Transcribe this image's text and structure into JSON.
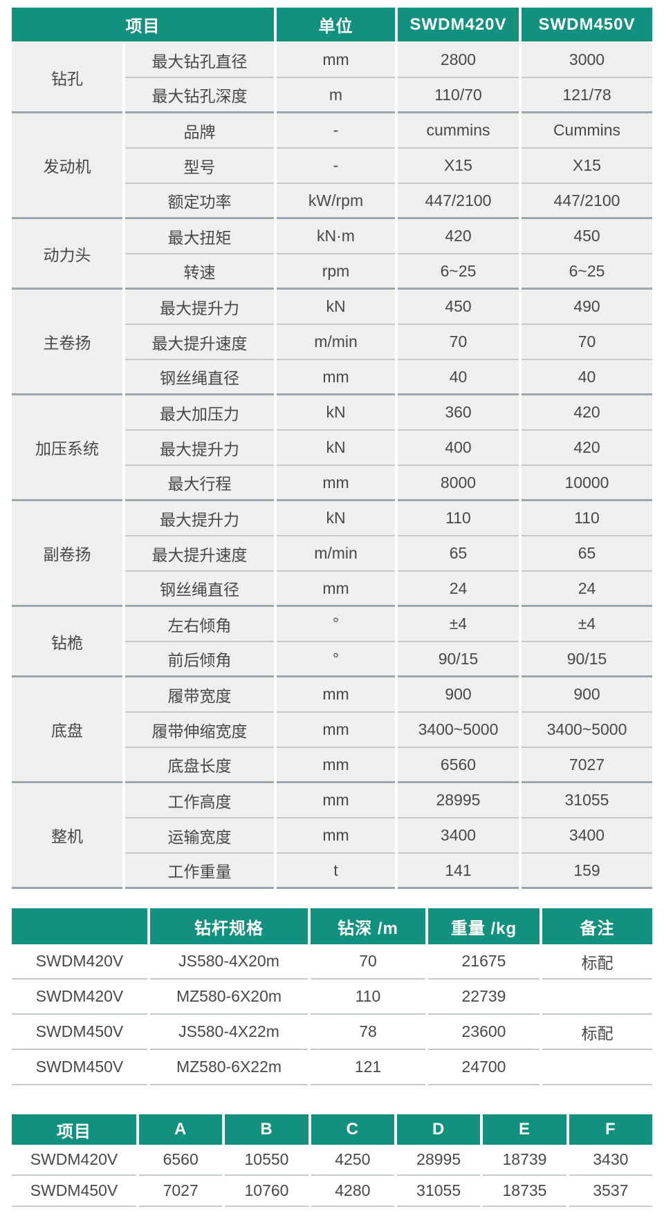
{
  "colors": {
    "accent": "#12917E",
    "cell_bg": "#EFEFEE",
    "group_line": "#9CA5AB",
    "row_line": "#C3C9C7",
    "header_text": "#FFFFFF",
    "body_text": "#45494A"
  },
  "spec_table": {
    "headers": {
      "item": "项目",
      "unit": "单位",
      "model_a": "SWDM420V",
      "model_b": "SWDM450V"
    },
    "groups": [
      {
        "name": "钻孔",
        "rows": [
          {
            "item": "最大钻孔直径",
            "unit": "mm",
            "a": "2800",
            "b": "3000"
          },
          {
            "item": "最大钻孔深度",
            "unit": "m",
            "a": "110/70",
            "b": "121/78"
          }
        ]
      },
      {
        "name": "发动机",
        "rows": [
          {
            "item": "品牌",
            "unit": "-",
            "a": "cummins",
            "b": "Cummins"
          },
          {
            "item": "型号",
            "unit": "-",
            "a": "X15",
            "b": "X15"
          },
          {
            "item": "额定功率",
            "unit": "kW/rpm",
            "a": "447/2100",
            "b": "447/2100"
          }
        ]
      },
      {
        "name": "动力头",
        "rows": [
          {
            "item": "最大扭矩",
            "unit": "kN·m",
            "a": "420",
            "b": "450"
          },
          {
            "item": "转速",
            "unit": "rpm",
            "a": "6~25",
            "b": "6~25"
          }
        ]
      },
      {
        "name": "主卷扬",
        "rows": [
          {
            "item": "最大提升力",
            "unit": "kN",
            "a": "450",
            "b": "490"
          },
          {
            "item": "最大提升速度",
            "unit": "m/min",
            "a": "70",
            "b": "70"
          },
          {
            "item": "钢丝绳直径",
            "unit": "mm",
            "a": "40",
            "b": "40"
          }
        ]
      },
      {
        "name": "加压系统",
        "rows": [
          {
            "item": "最大加压力",
            "unit": "kN",
            "a": "360",
            "b": "420"
          },
          {
            "item": "最大提升力",
            "unit": "kN",
            "a": "400",
            "b": "420"
          },
          {
            "item": "最大行程",
            "unit": "mm",
            "a": "8000",
            "b": "10000"
          }
        ]
      },
      {
        "name": "副卷扬",
        "rows": [
          {
            "item": "最大提升力",
            "unit": "kN",
            "a": "110",
            "b": "110"
          },
          {
            "item": "最大提升速度",
            "unit": "m/min",
            "a": "65",
            "b": "65"
          },
          {
            "item": "钢丝绳直径",
            "unit": "mm",
            "a": "24",
            "b": "24"
          }
        ]
      },
      {
        "name": "钻桅",
        "rows": [
          {
            "item": "左右倾角",
            "unit": "°",
            "a": "±4",
            "b": "±4"
          },
          {
            "item": "前后倾角",
            "unit": "°",
            "a": "90/15",
            "b": "90/15"
          }
        ]
      },
      {
        "name": "底盘",
        "rows": [
          {
            "item": "履带宽度",
            "unit": "mm",
            "a": "900",
            "b": "900"
          },
          {
            "item": "履带伸缩宽度",
            "unit": "mm",
            "a": "3400~5000",
            "b": "3400~5000"
          },
          {
            "item": "底盘长度",
            "unit": "mm",
            "a": "6560",
            "b": "7027"
          }
        ]
      },
      {
        "name": "整机",
        "rows": [
          {
            "item": "工作高度",
            "unit": "mm",
            "a": "28995",
            "b": "31055"
          },
          {
            "item": "运输宽度",
            "unit": "mm",
            "a": "3400",
            "b": "3400"
          },
          {
            "item": "工作重量",
            "unit": "t",
            "a": "141",
            "b": "159"
          }
        ]
      }
    ]
  },
  "rod_table": {
    "headers": [
      "",
      "钻杆规格",
      "钻深 /m",
      "重量 /kg",
      "备注"
    ],
    "rows": [
      [
        "SWDM420V",
        "JS580-4X20m",
        "70",
        "21675",
        "标配"
      ],
      [
        "SWDM420V",
        "MZ580-6X20m",
        "110",
        "22739",
        ""
      ],
      [
        "SWDM450V",
        "JS580-4X22m",
        "78",
        "23600",
        "标配"
      ],
      [
        "SWDM450V",
        "MZ580-6X22m",
        "121",
        "24700",
        ""
      ]
    ]
  },
  "dim_table": {
    "headers": [
      "项目",
      "A",
      "B",
      "C",
      "D",
      "E",
      "F"
    ],
    "rows": [
      [
        "SWDM420V",
        "6560",
        "10550",
        "4250",
        "28995",
        "18739",
        "3430"
      ],
      [
        "SWDM450V",
        "7027",
        "10760",
        "4280",
        "31055",
        "18735",
        "3537"
      ]
    ]
  }
}
